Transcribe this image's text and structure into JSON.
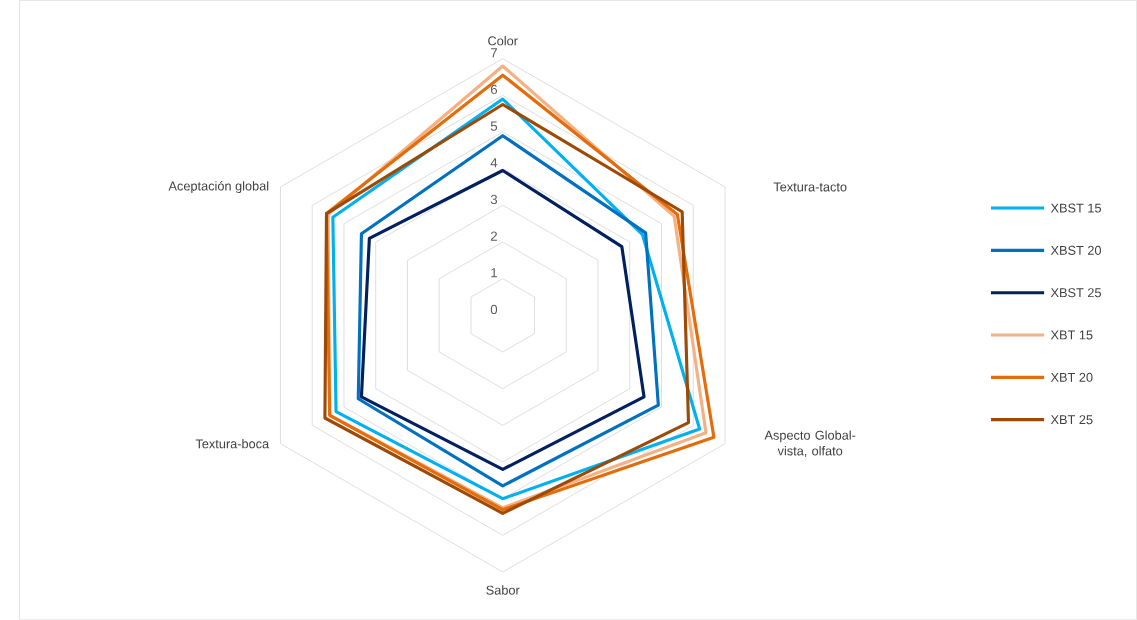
{
  "chart_data": {
    "type": "radar",
    "categories": [
      "Color",
      "Textura-tacto",
      "Aspecto Global-vista, olfato",
      "Sabor",
      "Textura-boca",
      "Aceptación global"
    ],
    "ylim": [
      0,
      7
    ],
    "yticks": [
      0,
      1,
      2,
      3,
      4,
      5,
      6,
      7
    ],
    "grid": true,
    "legend": "right",
    "series": [
      {
        "name": "XBST 15",
        "color": "#00b0f0",
        "values": [
          5.9,
          4.4,
          6.2,
          5.0,
          5.25,
          5.35
        ]
      },
      {
        "name": "XBST 20",
        "color": "#0070c0",
        "values": [
          4.9,
          4.5,
          4.9,
          4.65,
          4.55,
          4.45
        ]
      },
      {
        "name": "XBST 25",
        "color": "#002060",
        "values": [
          3.95,
          3.75,
          4.45,
          4.2,
          4.45,
          4.2
        ]
      },
      {
        "name": "XBT 15",
        "color": "#f4b183",
        "values": [
          6.8,
          5.4,
          6.4,
          5.25,
          5.45,
          5.5
        ]
      },
      {
        "name": "XBT 20",
        "color": "#e46c0a",
        "values": [
          6.55,
          5.5,
          6.65,
          5.3,
          5.45,
          5.55
        ]
      },
      {
        "name": "XBT 25",
        "color": "#9c4a06",
        "values": [
          5.75,
          5.65,
          5.85,
          5.4,
          5.6,
          5.55
        ]
      }
    ]
  }
}
